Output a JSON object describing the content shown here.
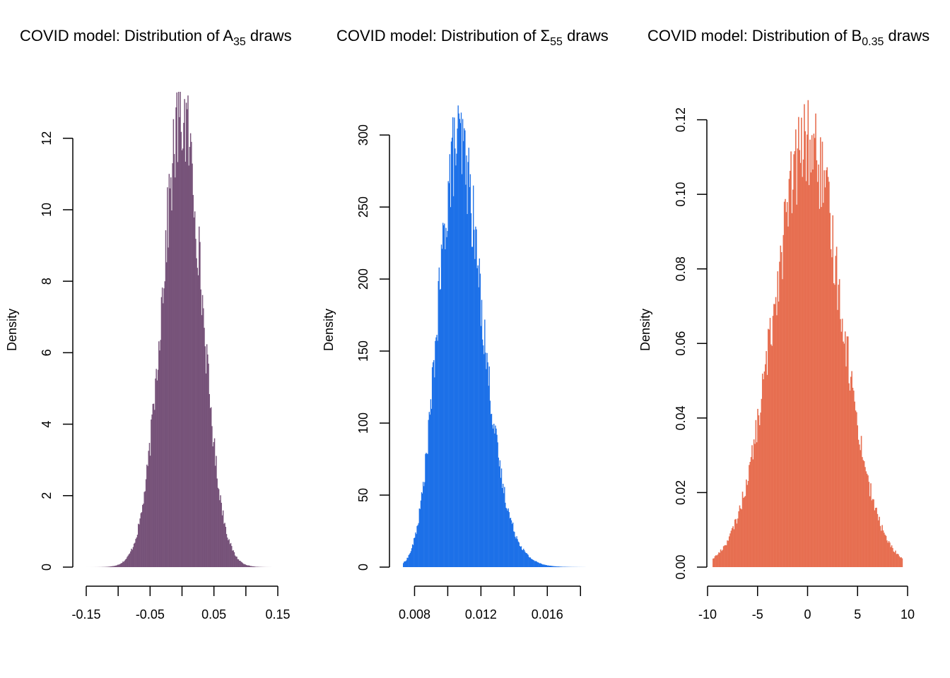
{
  "chart_data": [
    {
      "type": "histogram",
      "title": "COVID model: Distribution of A",
      "title_subscript": "35",
      "title_suffix": " draws",
      "ylabel": "Density",
      "xlabel": "",
      "color": "#765279",
      "xlim": [
        -0.15,
        0.15
      ],
      "ylim": [
        0,
        13.3
      ],
      "x_ticks": [
        -0.15,
        -0.1,
        -0.05,
        0,
        0.05,
        0.1,
        0.15
      ],
      "x_tick_labels": [
        "-0.15",
        "",
        "-0.05",
        "",
        "0.05",
        "",
        "0.15"
      ],
      "y_ticks": [
        0,
        2,
        4,
        6,
        8,
        10,
        12
      ],
      "y_tick_labels": [
        "0",
        "2",
        "4",
        "6",
        "8",
        "10",
        "12"
      ],
      "distribution": {
        "shape": "normal",
        "mean": 0.0,
        "sd": 0.031,
        "min": -0.155,
        "max": 0.14,
        "peak_density": 12.6,
        "n_bins": 220
      }
    },
    {
      "type": "histogram",
      "title": "COVID model: Distribution of Σ",
      "title_subscript": "55",
      "title_suffix": " draws",
      "ylabel": "Density",
      "xlabel": "",
      "color": "#1c70e8",
      "xlim": [
        0.007,
        0.0185
      ],
      "ylim": [
        0,
        330
      ],
      "x_ticks": [
        0.008,
        0.01,
        0.012,
        0.014,
        0.016,
        0.018
      ],
      "x_tick_labels": [
        "0.008",
        "",
        "0.012",
        "",
        "0.016",
        ""
      ],
      "y_ticks": [
        0,
        50,
        100,
        150,
        200,
        250,
        300
      ],
      "y_tick_labels": [
        "0",
        "50",
        "100",
        "150",
        "200",
        "250",
        "300"
      ],
      "distribution": {
        "shape": "lognormal",
        "mean": 0.0109,
        "sd": 0.00135,
        "min": 0.0073,
        "max": 0.0183,
        "peak_density": 295,
        "n_bins": 240
      }
    },
    {
      "type": "histogram",
      "title": "COVID model: Distribution of B",
      "title_subscript": "0.35",
      "title_suffix": " draws",
      "ylabel": "Density",
      "xlabel": "",
      "color": "#e76f51",
      "xlim": [
        -10,
        10
      ],
      "ylim": [
        0,
        0.1275
      ],
      "x_ticks": [
        -10,
        -5,
        0,
        5,
        10
      ],
      "x_tick_labels": [
        "-10",
        "-5",
        "0",
        "5",
        "10"
      ],
      "y_ticks": [
        0,
        0.02,
        0.04,
        0.06,
        0.08,
        0.1,
        0.12
      ],
      "y_tick_labels": [
        "0.00",
        "0.02",
        "0.04",
        "0.06",
        "0.08",
        "0.10",
        "0.12"
      ],
      "distribution": {
        "shape": "normal",
        "mean": 0.0,
        "sd": 3.4,
        "min": -9.5,
        "max": 9.5,
        "peak_density": 0.114,
        "n_bins": 200
      }
    }
  ]
}
